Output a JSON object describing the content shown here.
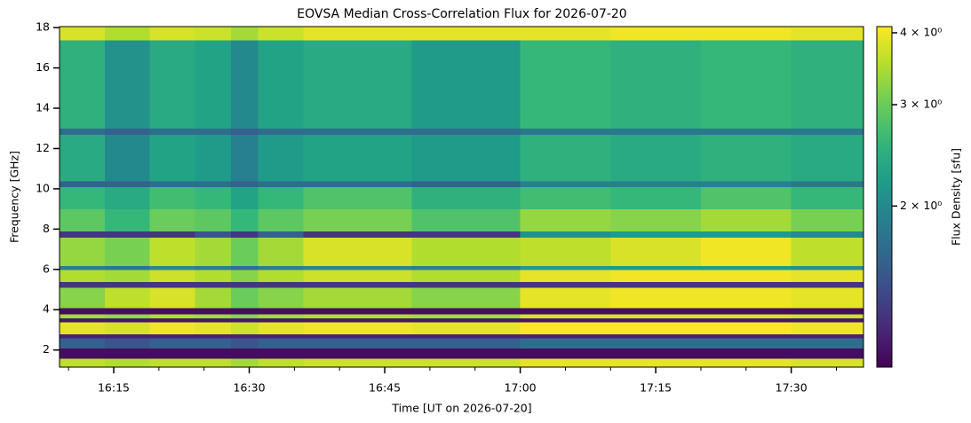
{
  "chart_data": {
    "type": "heatmap",
    "title": "EOVSA Median Cross-Correlation Flux for 2026-07-20",
    "x_label": "Time [UT on 2026-07-20]",
    "y_label": "Frequency [GHz]",
    "colorbar_label": "Flux Density [sfu]",
    "colorscale": "viridis",
    "z_log": true,
    "x_edges": [
      "16:09",
      "16:14",
      "16:19",
      "16:24",
      "16:28",
      "16:31",
      "16:36",
      "16:48",
      "17:00",
      "17:10",
      "17:20",
      "17:30",
      "17:38"
    ],
    "y_edges": [
      1.15,
      1.6,
      2.1,
      2.6,
      2.8,
      3.4,
      3.6,
      3.8,
      4.1,
      5.1,
      5.4,
      6.0,
      6.2,
      7.6,
      7.9,
      9.0,
      10.1,
      10.4,
      12.7,
      13.0,
      17.4,
      18.05
    ],
    "values": [
      [
        3.6,
        3.5,
        3.6,
        3.6,
        3.4,
        3.6,
        3.7,
        3.7,
        3.9,
        3.9,
        3.9,
        3.8
      ],
      [
        1.1,
        1.1,
        1.1,
        1.1,
        1.1,
        1.1,
        1.1,
        1.1,
        1.1,
        1.1,
        1.1,
        1.1
      ],
      [
        1.6,
        1.5,
        1.6,
        1.6,
        1.5,
        1.6,
        1.6,
        1.6,
        1.7,
        1.7,
        1.7,
        1.7
      ],
      [
        1.2,
        1.2,
        1.2,
        1.2,
        1.2,
        1.2,
        1.2,
        1.2,
        1.2,
        1.2,
        1.2,
        1.2
      ],
      [
        3.9,
        3.8,
        4.0,
        3.9,
        3.7,
        3.9,
        4.0,
        3.9,
        4.1,
        4.1,
        4.1,
        4.0
      ],
      [
        1.15,
        1.15,
        1.15,
        1.15,
        1.15,
        1.15,
        1.15,
        1.15,
        1.15,
        1.15,
        1.15,
        1.15
      ],
      [
        3.4,
        3.3,
        3.5,
        3.4,
        3.2,
        3.4,
        3.5,
        3.4,
        3.8,
        3.8,
        3.8,
        3.7
      ],
      [
        1.1,
        1.1,
        1.1,
        1.1,
        1.1,
        1.1,
        1.1,
        1.1,
        1.1,
        1.1,
        1.1,
        1.1
      ],
      [
        3.2,
        3.6,
        3.8,
        3.4,
        3.0,
        3.2,
        3.4,
        3.2,
        3.9,
        4.0,
        4.0,
        3.9
      ],
      [
        1.3,
        1.3,
        1.3,
        1.3,
        1.3,
        1.3,
        1.3,
        1.3,
        1.3,
        1.3,
        1.3,
        1.3
      ],
      [
        3.5,
        3.4,
        3.7,
        3.5,
        3.2,
        3.5,
        3.7,
        3.5,
        3.9,
        4.0,
        4.0,
        3.9
      ],
      [
        1.9,
        1.8,
        2.0,
        1.9,
        1.7,
        1.9,
        2.0,
        1.9,
        2.2,
        2.2,
        2.2,
        2.1
      ],
      [
        3.3,
        3.1,
        3.6,
        3.4,
        3.0,
        3.4,
        3.8,
        3.5,
        3.6,
        3.8,
        4.0,
        3.6
      ],
      [
        1.3,
        1.3,
        1.3,
        1.5,
        1.3,
        1.6,
        1.3,
        1.3,
        2.1,
        2.2,
        2.2,
        2.0
      ],
      [
        2.9,
        2.6,
        3.0,
        2.9,
        2.6,
        2.9,
        3.1,
        2.8,
        3.3,
        3.2,
        3.4,
        3.1
      ],
      [
        2.6,
        2.4,
        2.7,
        2.6,
        2.3,
        2.6,
        2.8,
        2.5,
        2.7,
        2.6,
        2.8,
        2.6
      ],
      [
        1.6,
        1.6,
        1.7,
        1.7,
        1.6,
        1.7,
        1.7,
        1.6,
        1.9,
        1.9,
        1.9,
        1.8
      ],
      [
        2.4,
        2.0,
        2.3,
        2.2,
        1.9,
        2.2,
        2.3,
        2.2,
        2.5,
        2.4,
        2.5,
        2.4
      ],
      [
        1.7,
        1.6,
        1.7,
        1.7,
        1.6,
        1.7,
        1.7,
        1.7,
        1.8,
        1.8,
        1.8,
        1.8
      ],
      [
        2.5,
        2.1,
        2.4,
        2.3,
        2.0,
        2.3,
        2.4,
        2.2,
        2.6,
        2.5,
        2.6,
        2.5
      ],
      [
        3.8,
        3.5,
        3.8,
        3.7,
        3.4,
        3.7,
        3.9,
        3.9,
        3.9,
        4.0,
        4.0,
        3.9
      ]
    ],
    "xlim": [
      "16:09",
      "17:38"
    ],
    "xticks": [
      "16:15",
      "16:30",
      "16:45",
      "17:00",
      "17:15",
      "17:30"
    ],
    "xticks_minor": [
      "16:10",
      "16:20",
      "16:25",
      "16:35",
      "16:40",
      "16:50",
      "16:55",
      "17:05",
      "17:10",
      "17:20",
      "17:25",
      "17:35"
    ],
    "ylim": [
      1.15,
      18.05
    ],
    "yticks": [
      2,
      4,
      6,
      8,
      10,
      12,
      14,
      16,
      18
    ],
    "zlim": [
      1.05,
      4.1
    ],
    "zticks": [
      {
        "value": 2,
        "label": "2 × 10⁰"
      },
      {
        "value": 3,
        "label": "3 × 10⁰"
      },
      {
        "value": 4,
        "label": "4 × 10⁰"
      }
    ]
  }
}
